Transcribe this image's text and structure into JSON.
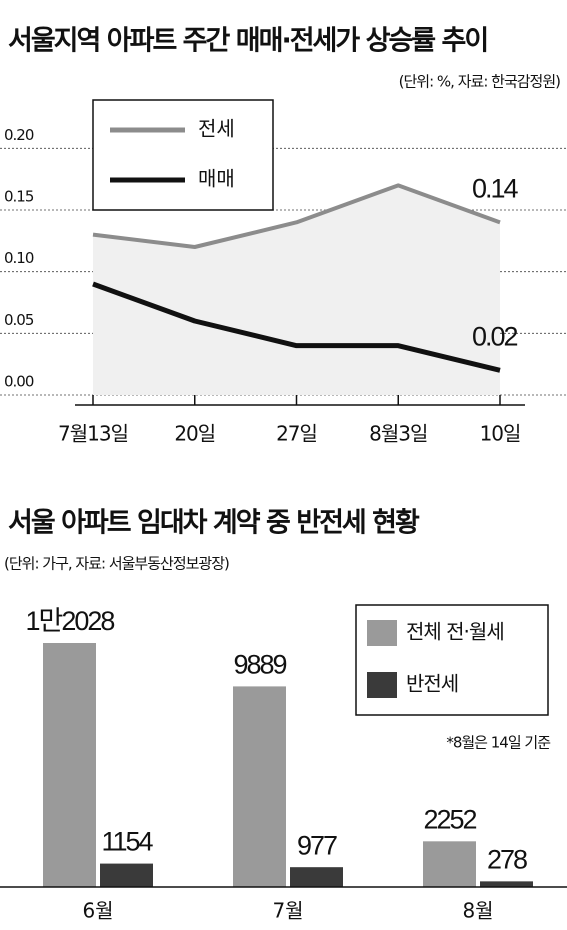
{
  "chart_data": [
    {
      "type": "line",
      "title": "서울지역 아파트 주간 매매·전세가 상승률 추이",
      "subtitle": "(단위: %, 자료: 한국감정원)",
      "categories": [
        "7월13일",
        "20일",
        "27일",
        "8월3일",
        "10일"
      ],
      "series": [
        {
          "name": "전세",
          "color": "#8c8c8c",
          "values": [
            0.13,
            0.12,
            0.14,
            0.17,
            0.14
          ],
          "value_labels": [
            null,
            null,
            null,
            null,
            "0.14"
          ]
        },
        {
          "name": "매매",
          "color": "#111111",
          "values": [
            0.09,
            0.06,
            0.04,
            0.04,
            0.02
          ],
          "value_labels": [
            null,
            null,
            null,
            null,
            "0.02"
          ]
        }
      ],
      "ylim": [
        0,
        0.24
      ],
      "yticks": [
        {
          "value": 0,
          "label": "0.00"
        },
        {
          "value": 0.05,
          "label": "0.05"
        },
        {
          "value": 0.1,
          "label": "0.10"
        },
        {
          "value": 0.15,
          "label": "0.15"
        },
        {
          "value": 0.2,
          "label": "0.20"
        }
      ],
      "grid": true,
      "legend": "top-left"
    },
    {
      "type": "bar",
      "title": "서울 아파트 임대차 계약 중 반전세 현황",
      "subtitle": "(단위: 가구, 자료: 서울부동산정보광장)",
      "note": "*8월은 14일 기준",
      "categories": [
        "6월",
        "7월",
        "8월"
      ],
      "series": [
        {
          "name": "전체 전·월세",
          "color": "#9a9a9a",
          "values": [
            12028,
            9889,
            2252
          ],
          "value_labels": [
            "1만2028",
            "9889",
            "2252"
          ]
        },
        {
          "name": "반전세",
          "color": "#3a3a3a",
          "values": [
            1154,
            977,
            278
          ]
        }
      ],
      "legend": "top-right"
    }
  ]
}
